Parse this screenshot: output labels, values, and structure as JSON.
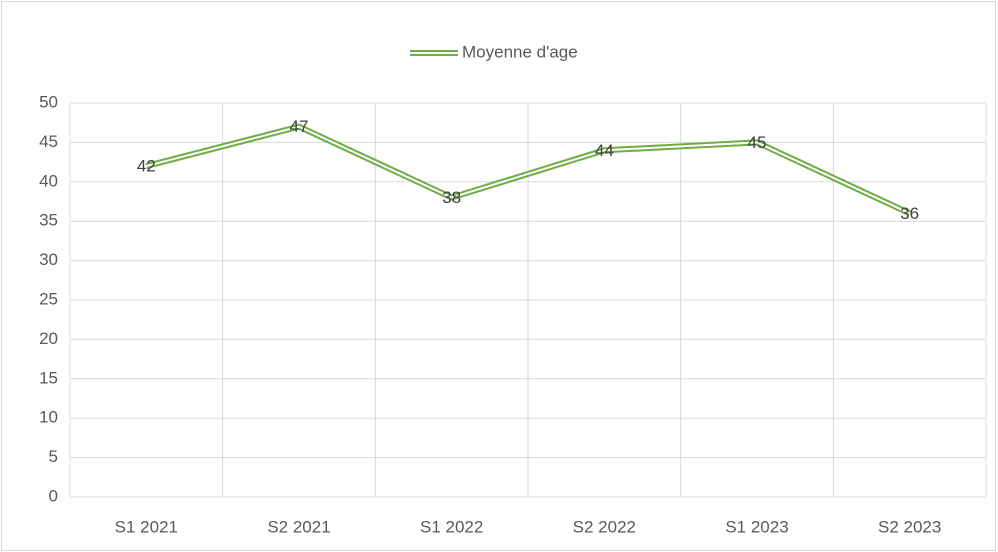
{
  "chart_data": {
    "type": "line",
    "categories": [
      "S1 2021",
      "S2 2021",
      "S1 2022",
      "S2 2022",
      "S1 2023",
      "S2 2023"
    ],
    "series": [
      {
        "name": "Moyenne d'age",
        "color": "#70ad47",
        "values": [
          42,
          47,
          38,
          44,
          45,
          36
        ]
      }
    ],
    "ylim": [
      0,
      50
    ],
    "yticks": [
      0,
      5,
      10,
      15,
      20,
      25,
      30,
      35,
      40,
      45,
      50
    ],
    "grid": true,
    "legend": "top",
    "data_labels": true
  }
}
